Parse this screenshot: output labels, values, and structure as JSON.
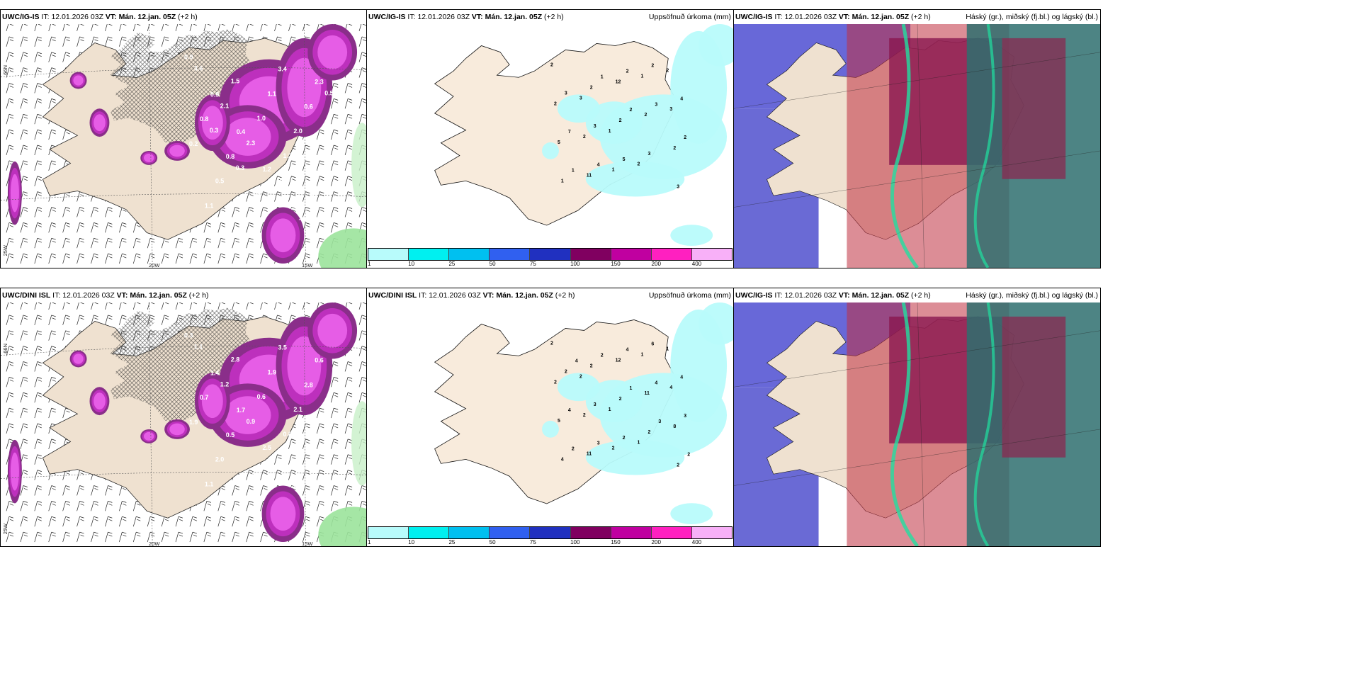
{
  "panels": [
    {
      "id": "p1",
      "header": {
        "model": "UWC/IG-IS",
        "it_label": "IT:",
        "it": "12.01.2026 03Z",
        "vt_label": "VT:",
        "vt": "Mán. 12.jan. 05Z",
        "lead": "(+2 h)",
        "right": ""
      },
      "axes": {
        "lat1": "66N",
        "lat2": "64N",
        "lat3": "25W",
        "lon1": "20W",
        "lon2": "15W"
      }
    },
    {
      "id": "p2",
      "header": {
        "model": "UWC/IG-IS",
        "it_label": "IT:",
        "it": "12.01.2026 03Z",
        "vt_label": "VT:",
        "vt": "Mán. 12.jan. 05Z",
        "lead": "(+2 h)",
        "right": "Uppsöfnuð úrkoma (mm)"
      }
    },
    {
      "id": "p3",
      "header": {
        "model": "UWC/IG-IS",
        "it_label": "IT:",
        "it": "12.01.2026 03Z",
        "vt_label": "VT:",
        "vt": "Mán. 12.jan. 05Z",
        "lead": "(+2 h)",
        "right": "Háský (gr.), miðský (fj.bl.) og lágský (bl.)"
      }
    },
    {
      "id": "p4",
      "header": {
        "model": "UWC/DINI ISL",
        "it_label": "IT:",
        "it": "12.01.2026 03Z",
        "vt_label": "VT:",
        "vt": "Mán. 12.jan. 05Z",
        "lead": "(+2 h)",
        "right": ""
      },
      "axes": {
        "lat1": "66N",
        "lat2": "64N",
        "lat3": "25W",
        "lon1": "20W",
        "lon2": "15W"
      }
    },
    {
      "id": "p5",
      "header": {
        "model": "UWC/DINI ISL",
        "it_label": "IT:",
        "it": "12.01.2026 03Z",
        "vt_label": "VT:",
        "vt": "Mán. 12.jan. 05Z",
        "lead": "(+2 h)",
        "right": "Uppsöfnuð úrkoma (mm)"
      }
    },
    {
      "id": "p6",
      "header": {
        "model": "UWC/IG-IS",
        "it_label": "IT:",
        "it": "12.01.2026 03Z",
        "vt_label": "VT:",
        "vt": "Mán. 12.jan. 05Z",
        "lead": "(+2 h)",
        "right": "Háský (gr.), miðský (fj.bl.) og lágský (bl.)"
      }
    }
  ],
  "precip_colorbar": {
    "ticks": [
      "1",
      "10",
      "25",
      "50",
      "75",
      "100",
      "150",
      "200",
      "400"
    ],
    "colors": [
      "#b8fbfb",
      "#00f0f0",
      "#00c0f0",
      "#3060f0",
      "#2030c0",
      "#800060",
      "#c000a0",
      "#ff20c0",
      "#f8b0f8"
    ]
  },
  "snow_labels_top": [
    "0.9",
    "0.9",
    "0.4",
    "1.2",
    "1.8",
    "2.3",
    "0.8",
    "0.8",
    "4.9",
    "3.4",
    "0.6",
    "0.2",
    "0.5",
    "0.5",
    "1.1",
    "2.0",
    "1.5",
    "1.1",
    "1.5",
    "1.0",
    "1.2",
    "2.8",
    "3.6",
    "2.1",
    "2.3",
    "0.9",
    "1.7",
    "0.5",
    "0.3",
    "0.3",
    "0.9"
  ],
  "snow_labels_bottom": [
    "0.3",
    "1.4",
    "1.7",
    "2.5",
    "1.2",
    "0.6",
    "0.7",
    "0.5",
    "1.5",
    "3.5",
    "2.8",
    "1.9",
    "2.0",
    "3.2",
    "1.9",
    "2.1",
    "2.4",
    "1.1",
    "2.8",
    "0.6",
    "0.8",
    "0.6",
    "1.1",
    "1.2",
    "0.9"
  ],
  "precip_labels_top": [
    "2",
    "3",
    "1",
    "2",
    "2",
    "2",
    "2",
    "1",
    "1",
    "3",
    "5",
    "11",
    "12",
    "2",
    "2",
    "1",
    "2",
    "2",
    "3",
    "3",
    "3",
    "3",
    "5",
    "2",
    "4",
    "7",
    "4",
    "2",
    "3",
    "2",
    "1",
    "1",
    "2"
  ],
  "precip_labels_bottom": [
    "2",
    "2",
    "1",
    "1",
    "1",
    "2",
    "2",
    "2",
    "1",
    "4",
    "5",
    "11",
    "12",
    "11",
    "8",
    "4",
    "2",
    "2",
    "2",
    "2",
    "2",
    "3",
    "2",
    "6",
    "4",
    "4",
    "3",
    "4",
    "4",
    "3",
    "2",
    "2",
    "1",
    "3",
    "2",
    "4"
  ]
}
